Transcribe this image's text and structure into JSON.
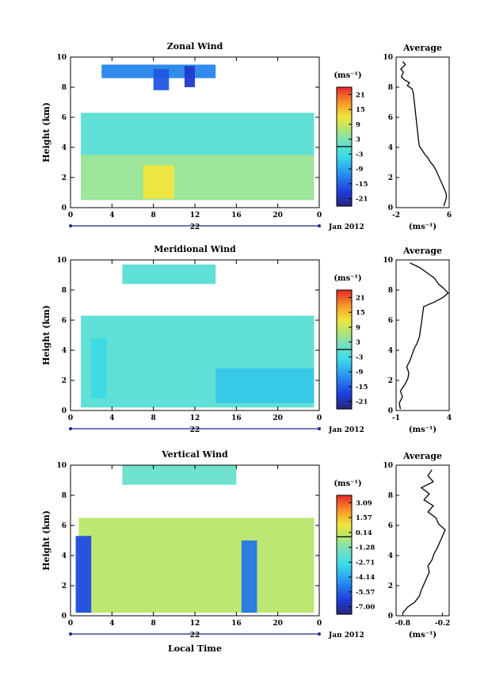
{
  "chart_data": [
    {
      "type": "heatmap",
      "title": "Zonal Wind",
      "ylabel": "Height (km)",
      "xlabel": "",
      "xlim": [
        0,
        24
      ],
      "ylim": [
        0,
        10
      ],
      "x_ticks": [
        "0",
        "4",
        "8",
        "12",
        "16",
        "20",
        "0"
      ],
      "y_ticks": [
        "0",
        "2",
        "4",
        "6",
        "8",
        "10"
      ],
      "date_day": "22",
      "date_month": "Jan 2012",
      "colorbar": {
        "unit": "(ms⁻¹)",
        "labels": [
          "21",
          "15",
          "9",
          "3",
          "-3",
          "-9",
          "-15",
          "-21"
        ],
        "range": [
          -24,
          24
        ],
        "zero_line": 0
      },
      "profile": {
        "title": "Average",
        "xlabel": "(ms⁻¹)",
        "x_ticks": [
          "-2",
          "6"
        ],
        "xlim": [
          -2,
          6
        ],
        "y_ticks": [
          "0",
          "2",
          "4",
          "6",
          "8",
          "10"
        ],
        "points": [
          [
            5.2,
            0.1
          ],
          [
            5.4,
            0.4
          ],
          [
            5.6,
            0.7
          ],
          [
            5.5,
            1.0
          ],
          [
            5.2,
            1.3
          ],
          [
            4.9,
            1.6
          ],
          [
            4.6,
            1.9
          ],
          [
            4.3,
            2.2
          ],
          [
            4.0,
            2.5
          ],
          [
            3.6,
            2.8
          ],
          [
            3.2,
            3.0
          ],
          [
            2.8,
            3.3
          ],
          [
            2.4,
            3.5
          ],
          [
            2.1,
            3.7
          ],
          [
            1.8,
            3.9
          ],
          [
            1.5,
            4.1
          ],
          [
            1.4,
            4.4
          ],
          [
            1.3,
            4.8
          ],
          [
            1.2,
            5.2
          ],
          [
            1.1,
            5.6
          ],
          [
            1.0,
            6.0
          ],
          [
            0.9,
            6.4
          ],
          [
            0.8,
            6.8
          ],
          [
            0.7,
            7.2
          ],
          [
            0.6,
            7.6
          ],
          [
            0.4,
            7.9
          ],
          [
            -0.3,
            8.1
          ],
          [
            0.0,
            8.3
          ],
          [
            -0.8,
            8.5
          ],
          [
            -1.2,
            8.7
          ],
          [
            -0.9,
            9.0
          ],
          [
            -1.3,
            9.2
          ],
          [
            -0.6,
            9.5
          ],
          [
            -1.0,
            9.7
          ]
        ]
      },
      "regions": [
        {
          "x0": 1.0,
          "x1": 23.5,
          "y0": 0.5,
          "y1": 3.5,
          "value": 5
        },
        {
          "x0": 7.0,
          "x1": 10.0,
          "y0": 0.6,
          "y1": 2.8,
          "value": 12
        },
        {
          "x0": 1.0,
          "x1": 23.5,
          "y0": 3.5,
          "y1": 6.3,
          "value": -1
        },
        {
          "x0": 3.0,
          "x1": 14.0,
          "y0": 8.6,
          "y1": 9.5,
          "value": -12
        },
        {
          "x0": 11.0,
          "x1": 12.0,
          "y0": 8.0,
          "y1": 9.4,
          "value": -19
        },
        {
          "x0": 8.0,
          "x1": 9.5,
          "y0": 7.8,
          "y1": 9.2,
          "value": -16
        }
      ]
    },
    {
      "type": "heatmap",
      "title": "Meridional Wind",
      "ylabel": "Height (km)",
      "xlabel": "",
      "xlim": [
        0,
        24
      ],
      "ylim": [
        0,
        10
      ],
      "x_ticks": [
        "0",
        "4",
        "8",
        "12",
        "16",
        "20",
        "0"
      ],
      "y_ticks": [
        "0",
        "2",
        "4",
        "6",
        "8",
        "10"
      ],
      "date_day": "22",
      "date_month": "Jan 2012",
      "colorbar": {
        "unit": "(ms⁻¹)",
        "labels": [
          "21",
          "15",
          "9",
          "3",
          "-3",
          "-9",
          "-15",
          "-21"
        ],
        "range": [
          -24,
          24
        ],
        "zero_line": 0
      },
      "profile": {
        "title": "Average",
        "xlabel": "(ms⁻¹)",
        "x_ticks": [
          "-1",
          "4"
        ],
        "xlim": [
          -1,
          4
        ],
        "y_ticks": [
          "0",
          "2",
          "4",
          "6",
          "8",
          "10"
        ],
        "points": [
          [
            -0.6,
            0.1
          ],
          [
            -0.7,
            0.5
          ],
          [
            -0.4,
            0.9
          ],
          [
            -0.6,
            1.3
          ],
          [
            -0.2,
            1.7
          ],
          [
            0.1,
            2.1
          ],
          [
            0.2,
            2.5
          ],
          [
            0.0,
            2.9
          ],
          [
            0.3,
            3.3
          ],
          [
            0.5,
            3.7
          ],
          [
            0.7,
            4.1
          ],
          [
            1.0,
            4.5
          ],
          [
            1.2,
            4.9
          ],
          [
            1.3,
            5.4
          ],
          [
            1.4,
            5.9
          ],
          [
            1.5,
            6.4
          ],
          [
            1.6,
            6.9
          ],
          [
            2.6,
            7.2
          ],
          [
            3.4,
            7.5
          ],
          [
            3.9,
            7.8
          ],
          [
            3.5,
            8.1
          ],
          [
            3.0,
            8.4
          ],
          [
            2.6,
            8.8
          ],
          [
            2.0,
            9.1
          ],
          [
            1.2,
            9.5
          ],
          [
            0.3,
            9.8
          ]
        ]
      },
      "regions": [
        {
          "x0": 1.0,
          "x1": 23.5,
          "y0": 0.2,
          "y1": 6.3,
          "value": -1
        },
        {
          "x0": 14.0,
          "x1": 23.5,
          "y0": 0.5,
          "y1": 2.8,
          "value": -6
        },
        {
          "x0": 2.0,
          "x1": 3.5,
          "y0": 0.8,
          "y1": 4.8,
          "value": -4
        },
        {
          "x0": 5.0,
          "x1": 14.0,
          "y0": 8.4,
          "y1": 9.7,
          "value": -1
        }
      ]
    },
    {
      "type": "heatmap",
      "title": "Vertical Wind",
      "ylabel": "Height (km)",
      "xlabel": "Local Time",
      "xlim": [
        0,
        24
      ],
      "ylim": [
        0,
        10
      ],
      "x_ticks": [
        "0",
        "4",
        "8",
        "12",
        "16",
        "20",
        "0"
      ],
      "y_ticks": [
        "0",
        "2",
        "4",
        "6",
        "8",
        "10"
      ],
      "date_day": "22",
      "date_month": "Jan 2012",
      "colorbar": {
        "unit": "(ms⁻¹)",
        "labels": [
          "3.09",
          "1.57",
          "0.14",
          "-1.28",
          "-2.71",
          "-4.14",
          "-5.57",
          "-7.00"
        ],
        "range": [
          -8.43,
          4.52
        ],
        "zero_line": 0
      },
      "profile": {
        "title": "Average",
        "xlabel": "(ms⁻¹)",
        "x_ticks": [
          "-0.8",
          "-0.2"
        ],
        "xlim": [
          -0.9,
          -0.1
        ],
        "y_ticks": [
          "0",
          "2",
          "4",
          "6",
          "8",
          "10"
        ],
        "points": [
          [
            -0.8,
            0.2
          ],
          [
            -0.72,
            0.6
          ],
          [
            -0.62,
            0.9
          ],
          [
            -0.55,
            1.3
          ],
          [
            -0.52,
            1.7
          ],
          [
            -0.48,
            2.1
          ],
          [
            -0.44,
            2.5
          ],
          [
            -0.4,
            2.9
          ],
          [
            -0.42,
            3.3
          ],
          [
            -0.36,
            3.7
          ],
          [
            -0.33,
            4.1
          ],
          [
            -0.28,
            4.5
          ],
          [
            -0.24,
            4.9
          ],
          [
            -0.2,
            5.3
          ],
          [
            -0.16,
            5.7
          ],
          [
            -0.26,
            6.1
          ],
          [
            -0.3,
            6.5
          ],
          [
            -0.42,
            6.9
          ],
          [
            -0.34,
            7.3
          ],
          [
            -0.48,
            7.7
          ],
          [
            -0.4,
            8.1
          ],
          [
            -0.52,
            8.5
          ],
          [
            -0.34,
            8.9
          ],
          [
            -0.42,
            9.3
          ],
          [
            -0.36,
            9.7
          ]
        ]
      },
      "regions": [
        {
          "x0": 0.8,
          "x1": 23.5,
          "y0": 0.2,
          "y1": 6.5,
          "value": 0.1
        },
        {
          "x0": 0.5,
          "x1": 2.0,
          "y0": 0.2,
          "y1": 5.3,
          "value": -6.5
        },
        {
          "x0": 16.5,
          "x1": 18.0,
          "y0": 0.2,
          "y1": 5.0,
          "value": -5.5
        },
        {
          "x0": 5.0,
          "x1": 16.0,
          "y0": 8.7,
          "y1": 10.0,
          "value": -1.8
        }
      ]
    }
  ]
}
